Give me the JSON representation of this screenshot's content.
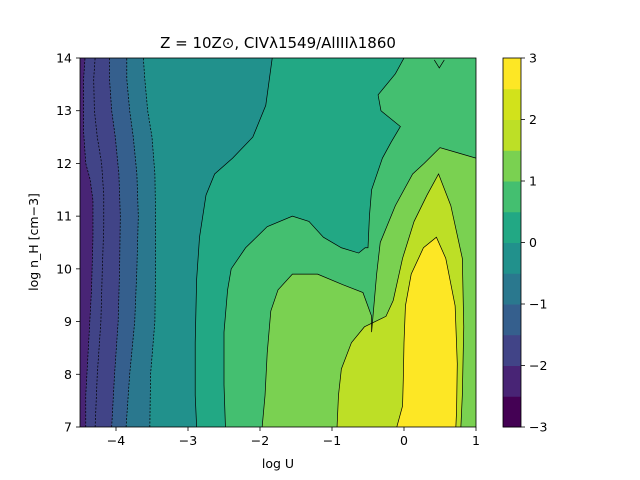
{
  "chart_data": {
    "type": "heatmap",
    "subtype": "filled-contour",
    "title": "Z = 10Z⊙, CIVλ1549/AlIIIλ1860",
    "xlabel": "log U",
    "ylabel": "log n_H [cm⁻³]",
    "xlim": [
      -4.5,
      1.0
    ],
    "ylim": [
      7,
      14
    ],
    "x_ticks": [
      -4,
      -3,
      -2,
      -1,
      0,
      1
    ],
    "y_ticks": [
      7,
      8,
      9,
      10,
      11,
      12,
      13,
      14
    ],
    "colorbar_label": "",
    "colorbar_range": [
      -3,
      3
    ],
    "colorbar_ticks": [
      -3,
      -2,
      -1,
      0,
      1,
      2,
      3
    ],
    "levels": [
      -3.0,
      -2.5,
      -2.0,
      -1.5,
      -1.0,
      -0.5,
      0.0,
      0.5,
      1.0,
      1.5,
      2.0,
      2.5,
      3.0
    ],
    "level_colors": [
      "#440154",
      "#482475",
      "#414487",
      "#355f8d",
      "#2a788e",
      "#21918c",
      "#22a884",
      "#44bf70",
      "#7ad151",
      "#bddf26",
      "#fde725",
      "#fde725"
    ],
    "region_values": [
      {
        "value": -2.75,
        "description": "lowest band along the left edge"
      },
      {
        "value": -2.25
      },
      {
        "value": -1.75
      },
      {
        "value": -1.25
      },
      {
        "value": -0.75
      },
      {
        "value": -0.25
      },
      {
        "value": 0.25
      },
      {
        "value": 0.75
      },
      {
        "value": 1.25
      },
      {
        "value": 1.75
      },
      {
        "value": 2.25
      },
      {
        "value": 2.75
      }
    ],
    "contour_lines": [
      {
        "level": -2.5,
        "points": [
          [
            -4.5,
            7.0
          ],
          [
            -4.5,
            14.0
          ]
        ]
      },
      {
        "level": -2.25,
        "points": [
          [
            -4.42,
            7.0
          ],
          [
            -4.42,
            7.6
          ],
          [
            -4.38,
            8.6
          ],
          [
            -4.34,
            9.6
          ],
          [
            -4.32,
            10.6
          ],
          [
            -4.32,
            11.3
          ],
          [
            -4.36,
            11.7
          ],
          [
            -4.42,
            12.0
          ],
          [
            -4.45,
            12.6
          ],
          [
            -4.45,
            13.6
          ],
          [
            -4.43,
            14.0
          ]
        ]
      },
      {
        "level": -2.0,
        "points": [
          [
            -4.29,
            7.0
          ],
          [
            -4.26,
            8.0
          ],
          [
            -4.21,
            9.0
          ],
          [
            -4.19,
            10.0
          ],
          [
            -4.17,
            10.8
          ],
          [
            -4.17,
            11.4
          ],
          [
            -4.2,
            12.0
          ],
          [
            -4.26,
            12.5
          ],
          [
            -4.3,
            13.0
          ],
          [
            -4.31,
            13.6
          ],
          [
            -4.29,
            14.0
          ]
        ]
      },
      {
        "level": -1.5,
        "points": [
          [
            -4.06,
            7.0
          ],
          [
            -4.02,
            8.0
          ],
          [
            -3.97,
            9.0
          ],
          [
            -3.95,
            10.0
          ],
          [
            -3.94,
            11.0
          ],
          [
            -3.96,
            11.8
          ],
          [
            -4.01,
            12.5
          ],
          [
            -4.06,
            13.0
          ],
          [
            -4.09,
            13.6
          ],
          [
            -4.09,
            14.0
          ]
        ]
      },
      {
        "level": -1.0,
        "points": [
          [
            -3.86,
            7.0
          ],
          [
            -3.81,
            8.0
          ],
          [
            -3.74,
            9.0
          ],
          [
            -3.71,
            10.0
          ],
          [
            -3.69,
            11.0
          ],
          [
            -3.71,
            11.8
          ],
          [
            -3.76,
            12.5
          ],
          [
            -3.81,
            13.0
          ],
          [
            -3.85,
            13.6
          ],
          [
            -3.85,
            14.0
          ]
        ]
      },
      {
        "level": -0.5,
        "points": [
          [
            -3.53,
            7.0
          ],
          [
            -3.52,
            8.0
          ],
          [
            -3.46,
            9.0
          ],
          [
            -3.45,
            10.0
          ],
          [
            -3.45,
            11.0
          ],
          [
            -3.46,
            11.8
          ],
          [
            -3.5,
            12.5
          ],
          [
            -3.56,
            13.0
          ],
          [
            -3.6,
            13.6
          ],
          [
            -3.62,
            14.0
          ]
        ]
      },
      {
        "level": 0.0,
        "points": [
          [
            -2.88,
            7.0
          ],
          [
            -2.9,
            7.6
          ],
          [
            -2.9,
            8.6
          ],
          [
            -2.88,
            9.8
          ],
          [
            -2.84,
            10.6
          ],
          [
            -2.75,
            11.4
          ],
          [
            -2.63,
            11.8
          ],
          [
            -2.38,
            12.1
          ],
          [
            -2.1,
            12.5
          ],
          [
            -1.92,
            13.1
          ],
          [
            -1.87,
            13.6
          ],
          [
            -1.83,
            14.0
          ]
        ]
      },
      {
        "level": 0.5,
        "points": [
          [
            -2.48,
            7.0
          ],
          [
            -2.5,
            7.8
          ],
          [
            -2.5,
            8.8
          ],
          [
            -2.45,
            9.6
          ],
          [
            -2.4,
            10.0
          ],
          [
            -2.2,
            10.4
          ],
          [
            -2.05,
            10.6
          ],
          [
            -1.9,
            10.8
          ],
          [
            -1.55,
            11.0
          ],
          [
            -1.32,
            10.9
          ],
          [
            -1.12,
            10.6
          ],
          [
            -0.87,
            10.4
          ],
          [
            -0.63,
            10.3
          ],
          [
            -0.54,
            10.4
          ],
          [
            -0.5,
            10.4
          ],
          [
            -0.48,
            11.0
          ],
          [
            -0.45,
            11.5
          ],
          [
            -0.3,
            12.1
          ],
          [
            -0.18,
            12.4
          ],
          [
            -0.05,
            12.7
          ],
          [
            -0.32,
            13.0
          ],
          [
            -0.36,
            13.3
          ],
          [
            -0.12,
            13.7
          ],
          [
            -0.0,
            14.0
          ]
        ]
      },
      {
        "level": 1.0,
        "points": [
          [
            -1.97,
            7.0
          ],
          [
            -1.93,
            7.6
          ],
          [
            -1.9,
            8.4
          ],
          [
            -1.85,
            9.2
          ],
          [
            -1.75,
            9.6
          ],
          [
            -1.55,
            9.9
          ],
          [
            -1.2,
            9.9
          ],
          [
            -0.85,
            9.7
          ],
          [
            -0.57,
            9.55
          ],
          [
            -0.45,
            9.1
          ],
          [
            -0.45,
            8.8
          ],
          [
            -0.38,
            9.9
          ],
          [
            -0.33,
            10.5
          ],
          [
            -0.12,
            11.2
          ],
          [
            0.12,
            11.8
          ],
          [
            0.28,
            12.0
          ],
          [
            0.5,
            12.3
          ],
          [
            0.75,
            12.2
          ],
          [
            1.0,
            12.1
          ]
        ]
      },
      {
        "level": 1.5,
        "points": [
          [
            -0.93,
            7.0
          ],
          [
            -0.91,
            7.6
          ],
          [
            -0.87,
            8.1
          ],
          [
            -0.73,
            8.6
          ],
          [
            -0.55,
            8.9
          ],
          [
            -0.25,
            9.1
          ],
          [
            -0.15,
            9.4
          ],
          [
            -0.02,
            10.2
          ],
          [
            0.14,
            10.9
          ],
          [
            0.32,
            11.4
          ],
          [
            0.48,
            11.8
          ],
          [
            0.65,
            11.2
          ],
          [
            0.81,
            10.2
          ],
          [
            0.83,
            8.9
          ],
          [
            0.81,
            7.6
          ],
          [
            0.79,
            7.0
          ]
        ]
      },
      {
        "level": 2.0,
        "points": [
          [
            -0.1,
            7.0
          ],
          [
            -0.02,
            7.4
          ],
          [
            -0.01,
            7.9
          ],
          [
            0.0,
            8.6
          ],
          [
            0.02,
            9.3
          ],
          [
            0.1,
            9.9
          ],
          [
            0.27,
            10.4
          ],
          [
            0.45,
            10.6
          ],
          [
            0.58,
            10.2
          ],
          [
            0.71,
            9.3
          ],
          [
            0.74,
            8.2
          ],
          [
            0.73,
            7.3
          ],
          [
            0.72,
            7.0
          ]
        ]
      }
    ],
    "overlay_points": [
      {
        "label": "kink",
        "x": 0.49,
        "y": 13.85
      }
    ]
  },
  "axes": {
    "xlabel_display": "log U",
    "ylabel_display": "log n_H [cm−3]"
  },
  "colors": {
    "outline": "#000000",
    "contour_line": "#000000",
    "background": "#ffffff"
  }
}
